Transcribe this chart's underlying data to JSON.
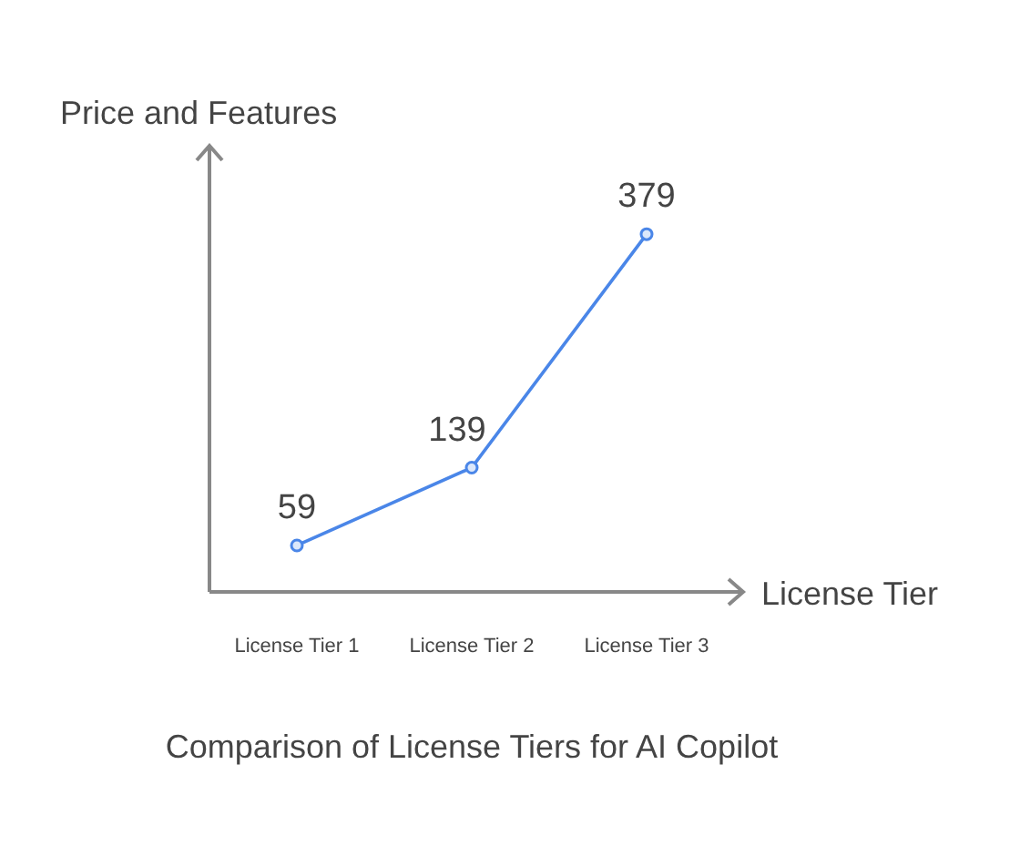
{
  "chart_data": {
    "type": "line",
    "title": "Comparison of License Tiers for AI Copilot",
    "xlabel": "License Tier",
    "ylabel": "Price and Features",
    "categories": [
      "License Tier 1",
      "License Tier 2",
      "License Tier 3"
    ],
    "series": [
      {
        "color": "#4a86e8",
        "values": [
          59,
          139,
          379
        ]
      }
    ],
    "data_labels": true,
    "marker": "circle",
    "line_style": "solid",
    "grid": false
  }
}
